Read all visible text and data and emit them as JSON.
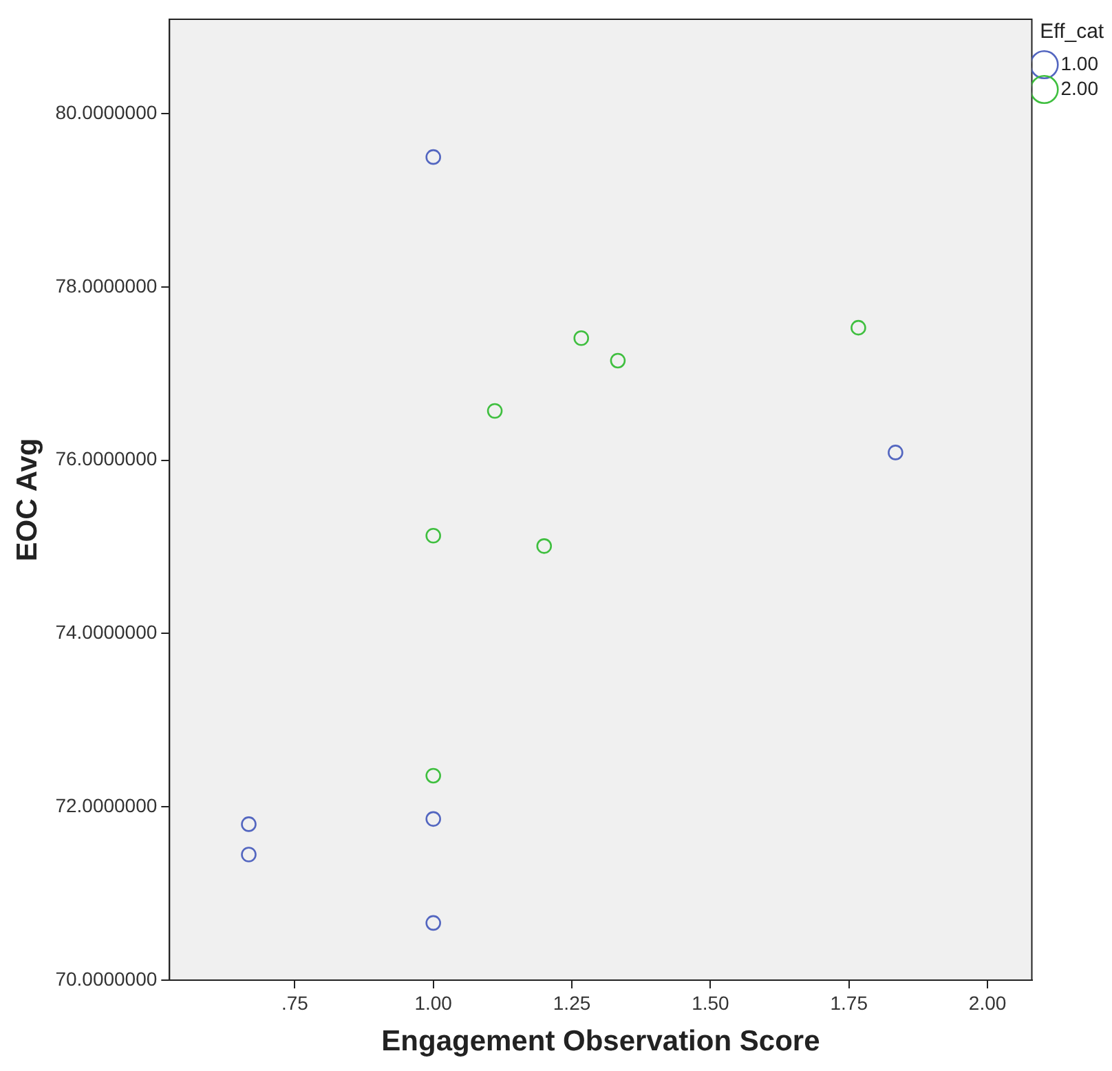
{
  "chart_data": {
    "type": "scatter",
    "xlabel": "Engagement Observation Score",
    "ylabel": "EOC Avg",
    "legend_title": "Eff_cat",
    "series": [
      {
        "name": "1.00",
        "color": "#5366c0",
        "x": [
          1.0,
          1.834,
          0.667,
          0.667,
          1.0,
          1.0
        ],
        "values": [
          79.5,
          76.09,
          71.8,
          71.45,
          71.86,
          70.66
        ]
      },
      {
        "name": "2.00",
        "color": "#3fbf3f",
        "x": [
          1.267,
          1.333,
          1.767,
          1.111,
          1.0,
          1.2,
          1.0
        ],
        "values": [
          77.41,
          77.15,
          77.53,
          76.57,
          75.13,
          75.01,
          72.36
        ]
      }
    ],
    "xlim": [
      0.524,
      2.08
    ],
    "xticks": [
      {
        "value": 0.75,
        "label": ".75"
      },
      {
        "value": 1.0,
        "label": "1.00"
      },
      {
        "value": 1.25,
        "label": "1.25"
      },
      {
        "value": 1.5,
        "label": "1.50"
      },
      {
        "value": 1.75,
        "label": "1.75"
      },
      {
        "value": 2.0,
        "label": "2.00"
      }
    ],
    "ylim": [
      70,
      81.09
    ],
    "yticks": [
      {
        "value": 70,
        "label": "70.0000000"
      },
      {
        "value": 72,
        "label": "72.0000000"
      },
      {
        "value": 74,
        "label": "74.0000000"
      },
      {
        "value": 76,
        "label": "76.0000000"
      },
      {
        "value": 78,
        "label": "78.0000000"
      },
      {
        "value": 80,
        "label": "80.0000000"
      }
    ],
    "grid": false,
    "legend": "top right",
    "marker": "circle"
  }
}
